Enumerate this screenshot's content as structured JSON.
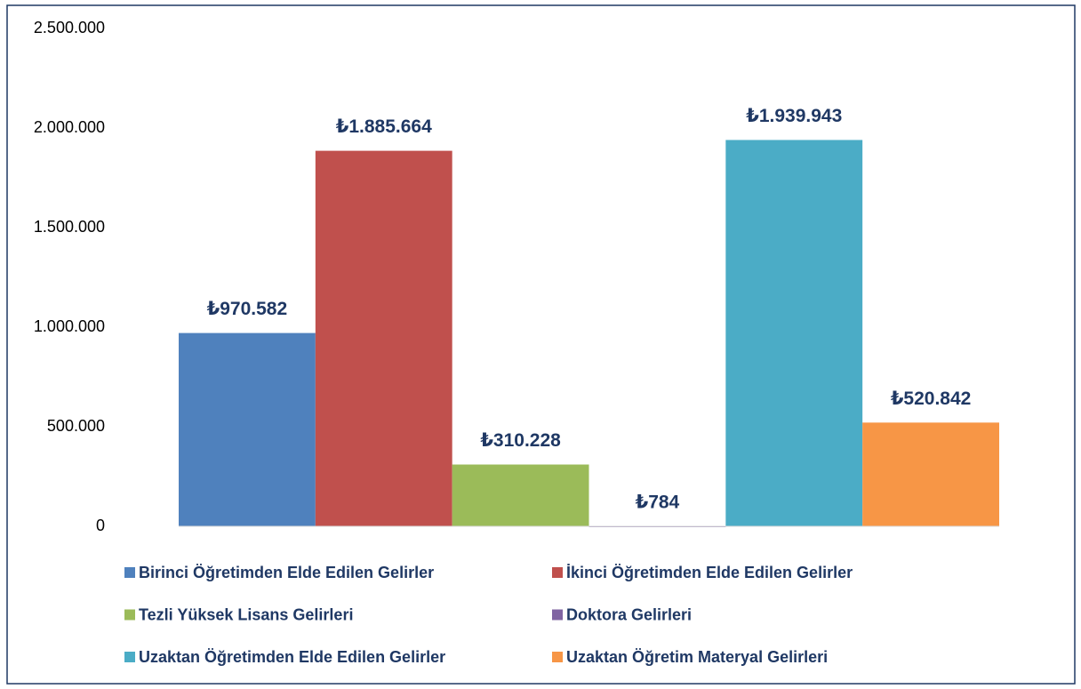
{
  "chart_data": {
    "type": "bar",
    "categories": [
      null
    ],
    "series": [
      {
        "name": "Birinci Öğretimden Elde Edilen Gelirler",
        "color": "#4f81bd",
        "values": [
          970582
        ],
        "value_labels": [
          "₺970.582"
        ]
      },
      {
        "name": "İkinci Öğretimden Elde Edilen Gelirler",
        "color": "#c0504d",
        "values": [
          1885664
        ],
        "value_labels": [
          "₺1.885.664"
        ]
      },
      {
        "name": "Tezli Yüksek Lisans Gelirleri",
        "color": "#9bbb59",
        "values": [
          310228
        ],
        "value_labels": [
          "₺310.228"
        ]
      },
      {
        "name": "Doktora Gelirleri",
        "color": "#8064a2",
        "values": [
          784
        ],
        "value_labels": [
          "₺784"
        ]
      },
      {
        "name": "Uzaktan Öğretimden Elde Edilen Gelirler",
        "color": "#4bacc6",
        "values": [
          1939943
        ],
        "value_labels": [
          "₺1.939.943"
        ]
      },
      {
        "name": "Uzaktan Öğretim Materyal Gelirleri",
        "color": "#f79646",
        "values": [
          520842
        ],
        "value_labels": [
          "₺520.842"
        ]
      }
    ],
    "ylim": [
      0,
      2500000
    ],
    "yticks": [
      0,
      {
        "value": 500000,
        "label": "500.000"
      },
      {
        "value": 1000000,
        "label": "1.000.000"
      },
      {
        "value": 1500000,
        "label": "1.500.000"
      },
      {
        "value": 2000000,
        "label": "2.000.000"
      },
      {
        "value": 2500000,
        "label": "2.500.000"
      }
    ],
    "grid": false
  }
}
